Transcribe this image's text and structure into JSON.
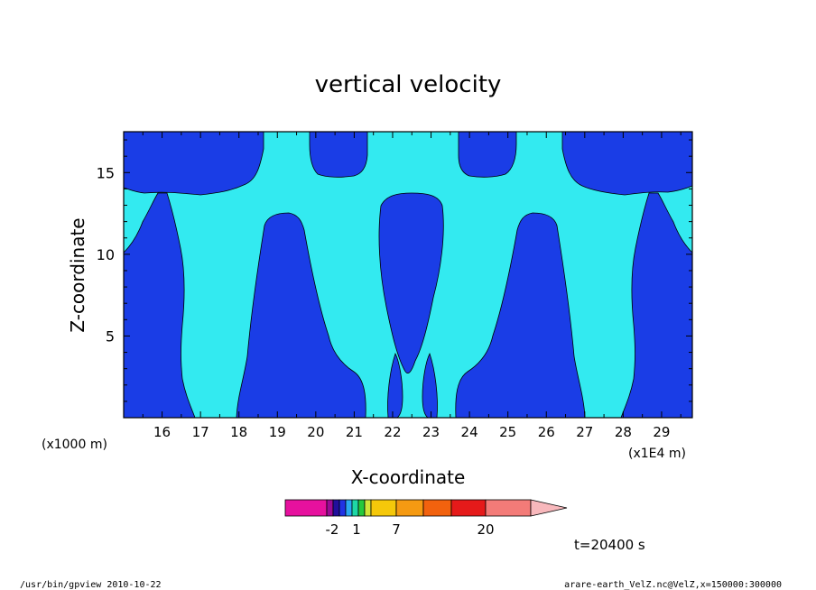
{
  "chart_data": {
    "type": "heatmap",
    "title": "vertical velocity",
    "xlabel": "X-coordinate",
    "ylabel": "Z-coordinate",
    "x_ticks": [
      "16",
      "17",
      "18",
      "19",
      "20",
      "21",
      "22",
      "23",
      "24",
      "25",
      "26",
      "27",
      "28",
      "29"
    ],
    "x_tick_values": [
      16,
      17,
      18,
      19,
      20,
      21,
      22,
      23,
      24,
      25,
      26,
      27,
      28,
      29
    ],
    "xlim": [
      15,
      29.8
    ],
    "x_unit_left": "(x1000 m)",
    "x_unit_right": "(x1E4 m)",
    "y_ticks": [
      "5",
      "10",
      "15"
    ],
    "y_tick_values": [
      5,
      10,
      15
    ],
    "ylim": [
      0,
      17.5
    ],
    "colors": {
      "negative": "#1a3de6",
      "positive": "#33eaf0",
      "contour": "#000000"
    },
    "colorbar": {
      "colors": [
        "#e6119e",
        "#9a0a96",
        "#210f9c",
        "#2033e4",
        "#2aa8f2",
        "#1ed8a6",
        "#25c93d",
        "#d0e53a",
        "#f5c80a",
        "#f59a12",
        "#f2620e",
        "#e51a1a",
        "#f37b78",
        "#f8b8bc"
      ],
      "labels": [
        "-2",
        "1",
        "7",
        "20"
      ]
    },
    "annotation": "t=20400 s"
  },
  "footer": {
    "left": "/usr/bin/gpview  2010-10-22",
    "right": "arare-earth_VelZ.nc@VelZ,x=150000:300000"
  }
}
